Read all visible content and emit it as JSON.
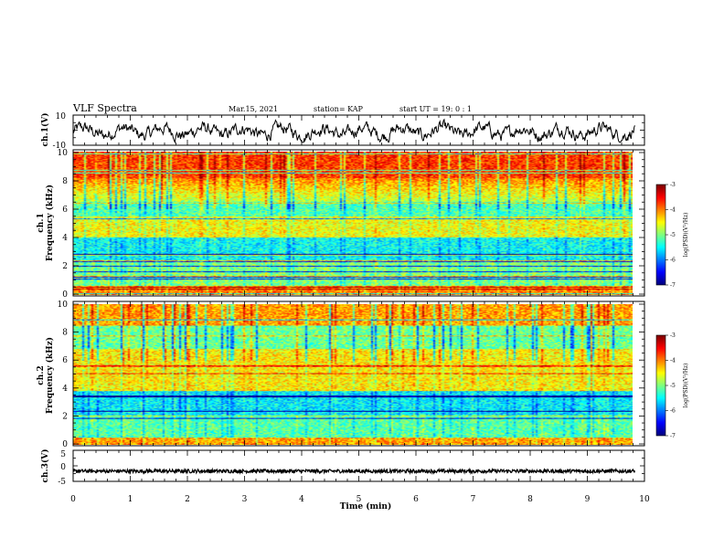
{
  "header": {
    "title": "VLF Spectra",
    "date": "Mar.15, 2021",
    "station": "station= KAP",
    "start": "start  UT =   19: 0  : 1"
  },
  "chart_data": [
    {
      "type": "line",
      "name": "ch1-waveform",
      "ylabel": "ch.1(V)",
      "ylim": [
        -10,
        10
      ],
      "yticks": [
        "10",
        "-10"
      ],
      "xlim": [
        0,
        9.83
      ],
      "style": "noisy black waveform oscillating roughly between -7 and 6 V"
    },
    {
      "type": "heatmap",
      "name": "ch1-spectrogram",
      "ylabel": "ch.1\nFrequency (kHz)",
      "ylim": [
        0,
        10
      ],
      "yticks": [
        "0",
        "2",
        "4",
        "6",
        "8",
        "10"
      ],
      "xlim": [
        0,
        9.83
      ],
      "colorbar": {
        "label": "log(PSD)(V²/Hz)",
        "ticks": [
          "-3",
          "-4",
          "-5",
          "-6",
          "-7"
        ],
        "range": [
          -7,
          -3
        ]
      }
    },
    {
      "type": "heatmap",
      "name": "ch2-spectrogram",
      "ylabel": "ch.2\nFrequency (kHz)",
      "ylim": [
        0,
        10
      ],
      "yticks": [
        "0",
        "2",
        "4",
        "6",
        "8",
        "10"
      ],
      "xlim": [
        0,
        9.83
      ],
      "colorbar": {
        "label": "log(PSD)(V²/Hz)",
        "ticks": [
          "-3",
          "-4",
          "-5",
          "-6",
          "-7"
        ],
        "range": [
          -7,
          -3
        ]
      }
    },
    {
      "type": "line",
      "name": "ch3-waveform",
      "ylabel": "ch.3(V)",
      "ylim": [
        -5,
        5
      ],
      "yticks": [
        "5",
        "0",
        "-5"
      ],
      "xlim": [
        0,
        9.83
      ],
      "style": "thick black band near -1.7 V"
    }
  ],
  "xaxis": {
    "label": "Time (min)",
    "range": [
      0,
      10
    ],
    "ticks": [
      "0",
      "1",
      "2",
      "3",
      "4",
      "5",
      "6",
      "7",
      "8",
      "9",
      "10"
    ]
  },
  "colors": {
    "axis": "#000000",
    "background": "#ffffff"
  }
}
